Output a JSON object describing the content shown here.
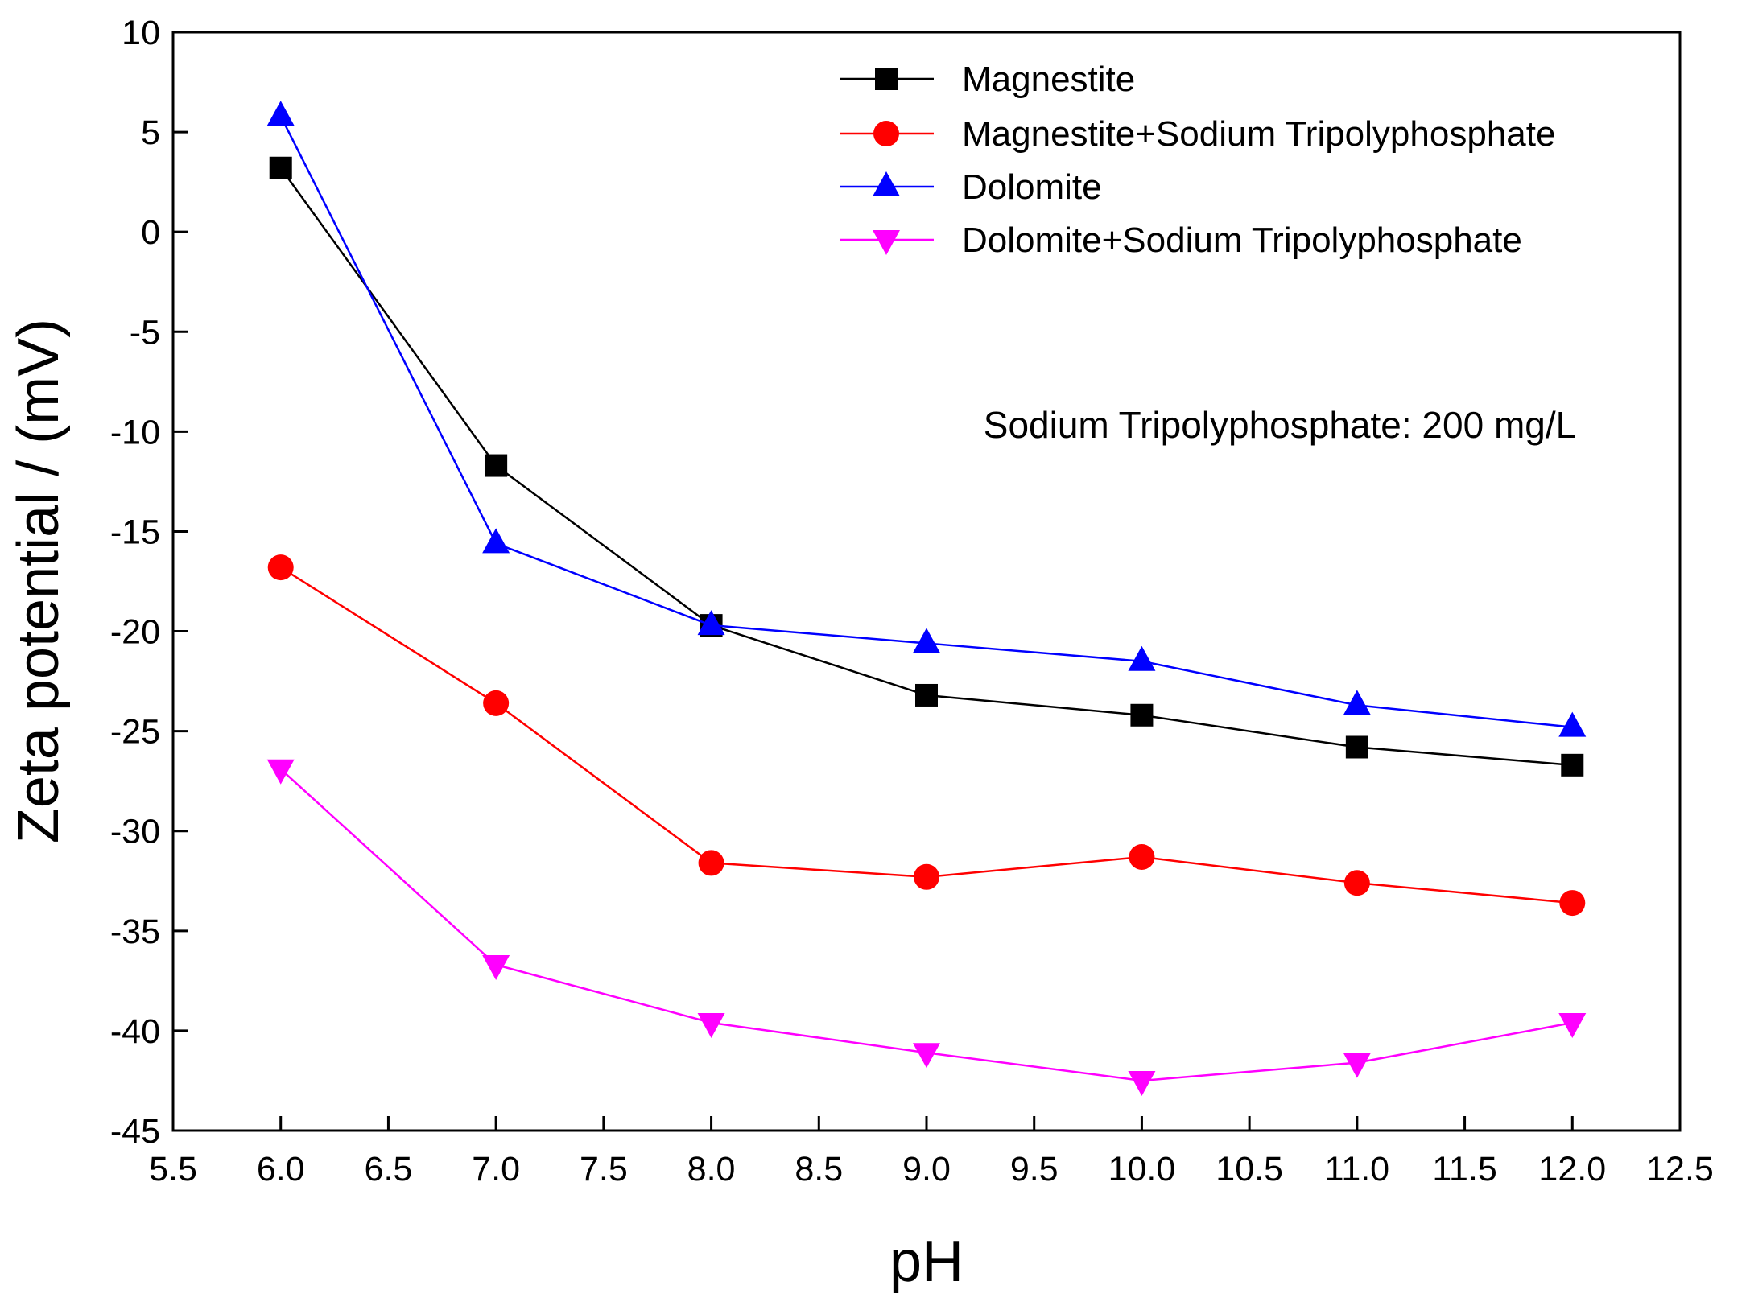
{
  "chart_data": {
    "type": "line",
    "title": "",
    "xlabel": "pH",
    "ylabel": "Zeta potential / (mV)",
    "xlim": [
      5.5,
      12.5
    ],
    "ylim": [
      -45,
      10
    ],
    "xticks": [
      "5.5",
      "6.0",
      "6.5",
      "7.0",
      "7.5",
      "8.0",
      "8.5",
      "9.0",
      "9.5",
      "10.0",
      "10.5",
      "11.0",
      "11.5",
      "12.0",
      "12.5"
    ],
    "yticks": [
      "10",
      "5",
      "0",
      "-5",
      "-10",
      "-15",
      "-20",
      "-25",
      "-30",
      "-35",
      "-40",
      "-45"
    ],
    "grid": false,
    "legend_position": "top-right",
    "annotation": "Sodium Tripolyphosphate: 200 mg/L",
    "x": [
      6,
      7,
      8,
      9,
      10,
      11,
      12
    ],
    "series": [
      {
        "name": "Magnestite",
        "marker": "square",
        "color": "#000000",
        "values": [
          3.2,
          -11.7,
          -19.7,
          -23.2,
          -24.2,
          -25.8,
          -26.7
        ]
      },
      {
        "name": "Magnestite+Sodium Tripolyphosphate",
        "marker": "circle",
        "color": "#ff0000",
        "values": [
          -16.8,
          -23.6,
          -31.6,
          -32.3,
          -31.3,
          -32.6,
          -33.6
        ]
      },
      {
        "name": "Dolomite",
        "marker": "triangle-up",
        "color": "#0000ff",
        "values": [
          5.8,
          -15.6,
          -19.7,
          -20.6,
          -21.5,
          -23.7,
          -24.8
        ]
      },
      {
        "name": "Dolomite+Sodium Tripolyphosphate",
        "marker": "triangle-down",
        "color": "#ff00ff",
        "values": [
          -26.9,
          -36.7,
          -39.6,
          -41.1,
          -42.5,
          -41.6,
          -39.6
        ]
      }
    ]
  }
}
